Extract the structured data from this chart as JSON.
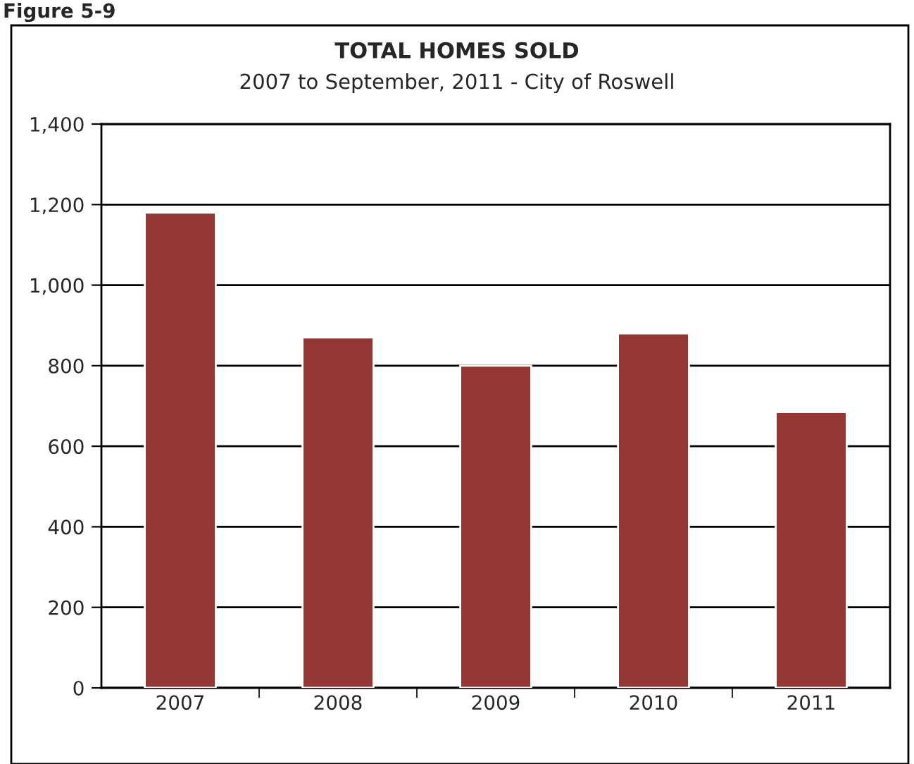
{
  "chart_data": {
    "type": "bar",
    "title": "TOTAL HOMES SOLD",
    "subtitle": "2007 to September, 2011 - City of Roswell",
    "annotations": [
      "Figure 5-9"
    ],
    "categories": [
      "2007",
      "2008",
      "2009",
      "2010",
      "2011"
    ],
    "values": [
      1180,
      870,
      800,
      880,
      685
    ],
    "color": "#943634",
    "ylim": [
      0,
      1400
    ],
    "yticks": [
      {
        "value": 0,
        "label": "0"
      },
      {
        "value": 200,
        "label": "200"
      },
      {
        "value": 400,
        "label": "400"
      },
      {
        "value": 600,
        "label": "600"
      },
      {
        "value": 800,
        "label": "800"
      },
      {
        "value": 1000,
        "label": "1,000"
      },
      {
        "value": 1200,
        "label": "1,200"
      },
      {
        "value": 1400,
        "label": "1,400"
      }
    ],
    "grid": "y"
  }
}
